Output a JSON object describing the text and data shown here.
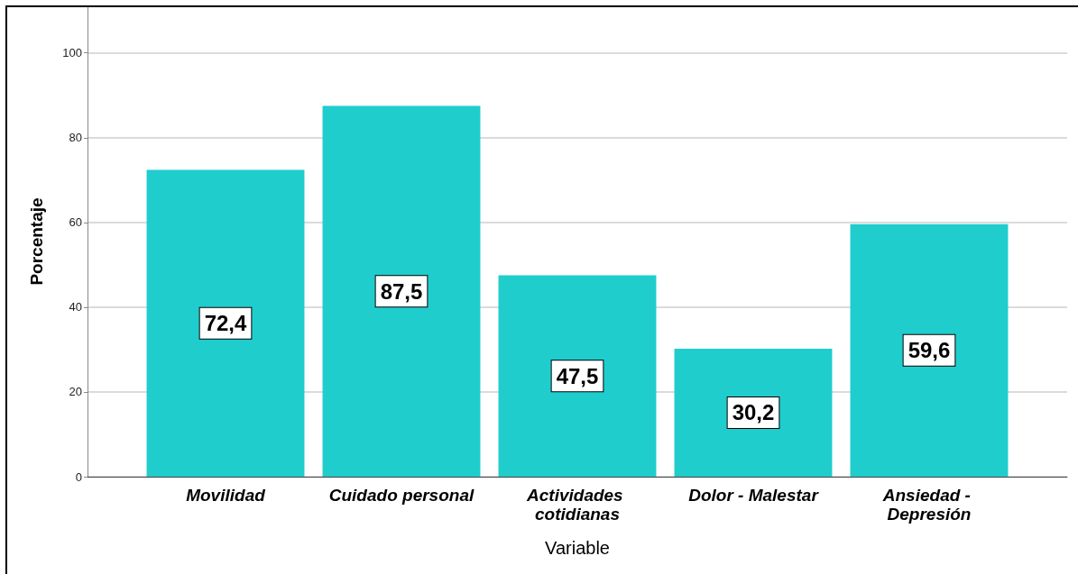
{
  "chart_data": {
    "type": "bar",
    "categories": [
      "Movilidad",
      "Cuidado personal",
      "Actividades cotidianas",
      "Dolor - Malestar",
      "Ansiedad - Depresión"
    ],
    "values": [
      72.4,
      87.5,
      47.5,
      30.2,
      59.6
    ],
    "value_labels": [
      "72,4",
      "87,5",
      "47,5",
      "30,2",
      "59,6"
    ],
    "color": "#1fcdcd",
    "xlabel": "Variable",
    "ylabel": "Porcentaje",
    "ylim": [
      0,
      111
    ],
    "yticks": [
      0,
      20,
      40,
      60,
      80,
      100
    ],
    "grid": "y"
  }
}
